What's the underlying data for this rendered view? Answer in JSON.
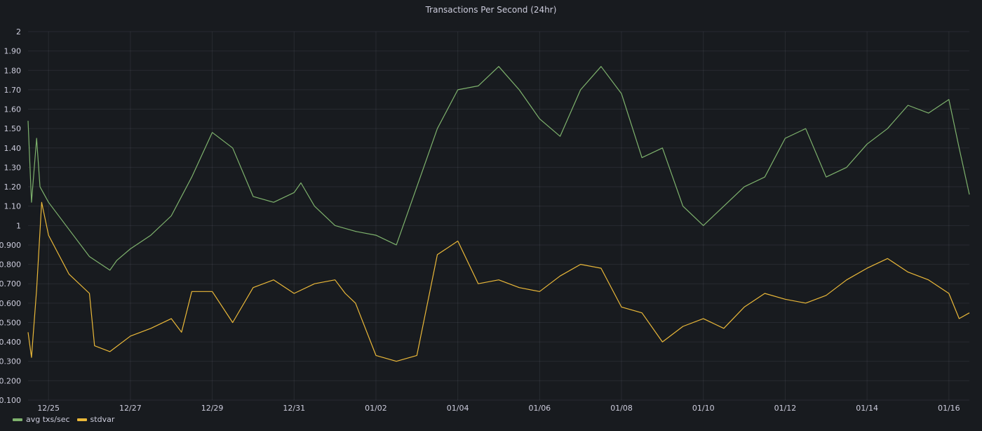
{
  "panel": {
    "title": "Transactions Per Second (24hr)"
  },
  "chart_data": {
    "type": "line",
    "title": "Transactions Per Second (24hr)",
    "xlabel": "",
    "ylabel": "",
    "y_ticks": [
      "0.100",
      "0.200",
      "0.300",
      "0.400",
      "0.500",
      "0.600",
      "0.700",
      "0.800",
      "0.900",
      "1",
      "1.10",
      "1.20",
      "1.30",
      "1.40",
      "1.50",
      "1.60",
      "1.70",
      "1.80",
      "1.90",
      "2"
    ],
    "ylim": [
      0.1,
      2
    ],
    "x_range_days": [
      "12/24",
      "01/16"
    ],
    "x_ticks": [
      "12/25",
      "12/27",
      "12/29",
      "12/31",
      "01/02",
      "01/04",
      "01/06",
      "01/08",
      "01/10",
      "01/12",
      "01/14",
      "01/16"
    ],
    "grid": true,
    "legend_position": "bottom-left",
    "series": [
      {
        "name": "avg txs/sec",
        "color": "#7eb26d",
        "x": [
          "12/24 12:00",
          "12/24 14:00",
          "12/24 17:00",
          "12/24 19:00",
          "12/25 00:00",
          "12/25 12:00",
          "12/26 00:00",
          "12/26 12:00",
          "12/26 16:00",
          "12/27 00:00",
          "12/27 12:00",
          "12/28 00:00",
          "12/28 12:00",
          "12/29 00:00",
          "12/29 12:00",
          "12/30 00:00",
          "12/30 12:00",
          "12/31 00:00",
          "12/31 04:00",
          "12/31 12:00",
          "01/01 00:00",
          "01/01 12:00",
          "01/02 00:00",
          "01/02 12:00",
          "01/03 00:00",
          "01/03 12:00",
          "01/04 00:00",
          "01/04 12:00",
          "01/05 00:00",
          "01/05 12:00",
          "01/06 00:00",
          "01/06 12:00",
          "01/07 00:00",
          "01/07 12:00",
          "01/08 00:00",
          "01/08 12:00",
          "01/09 00:00",
          "01/09 12:00",
          "01/10 00:00",
          "01/10 12:00",
          "01/11 00:00",
          "01/11 12:00",
          "01/12 00:00",
          "01/12 12:00",
          "01/13 00:00",
          "01/13 12:00",
          "01/14 00:00",
          "01/14 12:00",
          "01/15 00:00",
          "01/15 12:00",
          "01/16 00:00",
          "01/16 06:00",
          "01/16 12:00"
        ],
        "values": [
          1.54,
          1.12,
          1.45,
          1.2,
          1.12,
          0.98,
          0.84,
          0.77,
          0.82,
          0.88,
          0.95,
          1.05,
          1.25,
          1.48,
          1.4,
          1.15,
          1.12,
          1.17,
          1.22,
          1.1,
          1.0,
          0.97,
          0.95,
          0.9,
          1.2,
          1.5,
          1.7,
          1.72,
          1.82,
          1.7,
          1.55,
          1.46,
          1.7,
          1.82,
          1.68,
          1.35,
          1.4,
          1.1,
          1.0,
          1.1,
          1.2,
          1.25,
          1.45,
          1.5,
          1.25,
          1.3,
          1.42,
          1.5,
          1.62,
          1.58,
          1.65,
          1.4,
          1.16
        ]
      },
      {
        "name": "stdvar",
        "color": "#eab839",
        "x": [
          "12/24 12:00",
          "12/24 14:00",
          "12/24 17:00",
          "12/24 20:00",
          "12/25 00:00",
          "12/25 12:00",
          "12/26 00:00",
          "12/26 03:00",
          "12/26 12:00",
          "12/27 00:00",
          "12/27 12:00",
          "12/28 00:00",
          "12/28 06:00",
          "12/28 12:00",
          "12/29 00:00",
          "12/29 12:00",
          "12/30 00:00",
          "12/30 12:00",
          "12/31 00:00",
          "12/31 12:00",
          "01/01 00:00",
          "01/01 06:00",
          "01/01 12:00",
          "01/02 00:00",
          "01/02 12:00",
          "01/03 00:00",
          "01/03 12:00",
          "01/04 00:00",
          "01/04 12:00",
          "01/05 00:00",
          "01/05 12:00",
          "01/06 00:00",
          "01/06 12:00",
          "01/07 00:00",
          "01/07 12:00",
          "01/08 00:00",
          "01/08 12:00",
          "01/09 00:00",
          "01/09 12:00",
          "01/10 00:00",
          "01/10 12:00",
          "01/11 00:00",
          "01/11 12:00",
          "01/12 00:00",
          "01/12 12:00",
          "01/13 00:00",
          "01/13 12:00",
          "01/14 00:00",
          "01/14 12:00",
          "01/15 00:00",
          "01/15 12:00",
          "01/16 00:00",
          "01/16 06:00",
          "01/16 12:00"
        ],
        "values": [
          0.45,
          0.32,
          0.67,
          1.12,
          0.95,
          0.75,
          0.65,
          0.38,
          0.35,
          0.43,
          0.47,
          0.52,
          0.45,
          0.66,
          0.66,
          0.5,
          0.68,
          0.72,
          0.65,
          0.7,
          0.72,
          0.65,
          0.6,
          0.33,
          0.3,
          0.33,
          0.85,
          0.92,
          0.7,
          0.72,
          0.68,
          0.66,
          0.74,
          0.8,
          0.78,
          0.58,
          0.55,
          0.4,
          0.48,
          0.52,
          0.47,
          0.58,
          0.65,
          0.62,
          0.6,
          0.64,
          0.72,
          0.78,
          0.83,
          0.76,
          0.72,
          0.65,
          0.52,
          0.55
        ]
      }
    ]
  },
  "legend": {
    "items": [
      {
        "label": "avg txs/sec",
        "color": "#7eb26d"
      },
      {
        "label": "stdvar",
        "color": "#eab839"
      }
    ]
  }
}
